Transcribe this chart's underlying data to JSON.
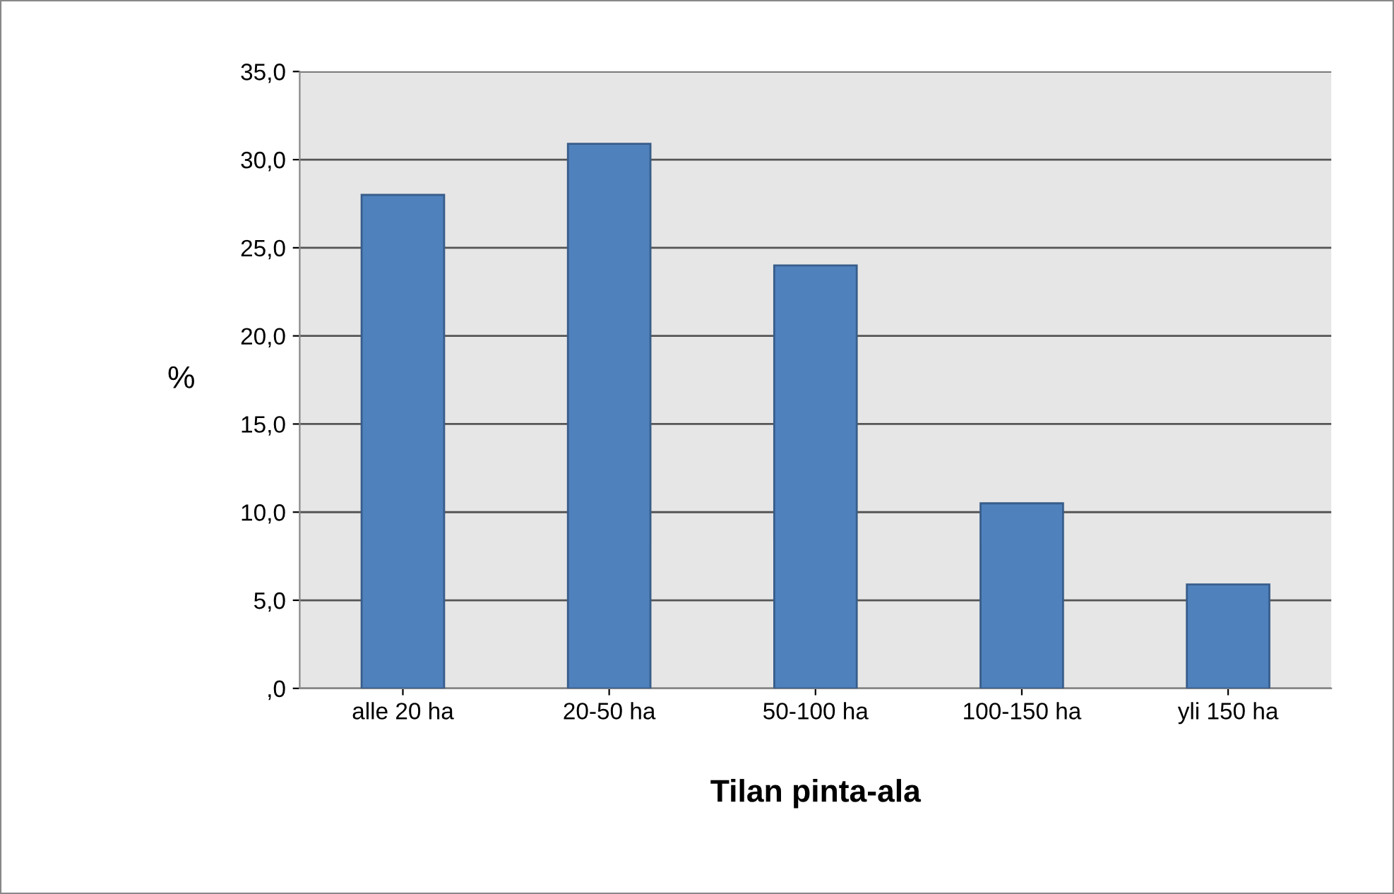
{
  "chart_data": {
    "type": "bar",
    "xlabel": "Tilan pinta-ala",
    "ylabel": "%",
    "categories": [
      "alle 20 ha",
      "20-50 ha",
      "50-100 ha",
      "100-150 ha",
      "yli 150 ha"
    ],
    "values": [
      28.0,
      30.9,
      24.0,
      10.5,
      5.9
    ],
    "color": "#4f81bd",
    "ylim": [
      0,
      35
    ],
    "yticks": [
      {
        "value": 0,
        "label": ",0"
      },
      {
        "value": 5,
        "label": "5,0"
      },
      {
        "value": 10,
        "label": "10,0"
      },
      {
        "value": 15,
        "label": "15,0"
      },
      {
        "value": 20,
        "label": "20,0"
      },
      {
        "value": 25,
        "label": "25,0"
      },
      {
        "value": 30,
        "label": "30,0"
      },
      {
        "value": 35,
        "label": "35,0"
      }
    ],
    "grid": "y",
    "legend": false
  }
}
